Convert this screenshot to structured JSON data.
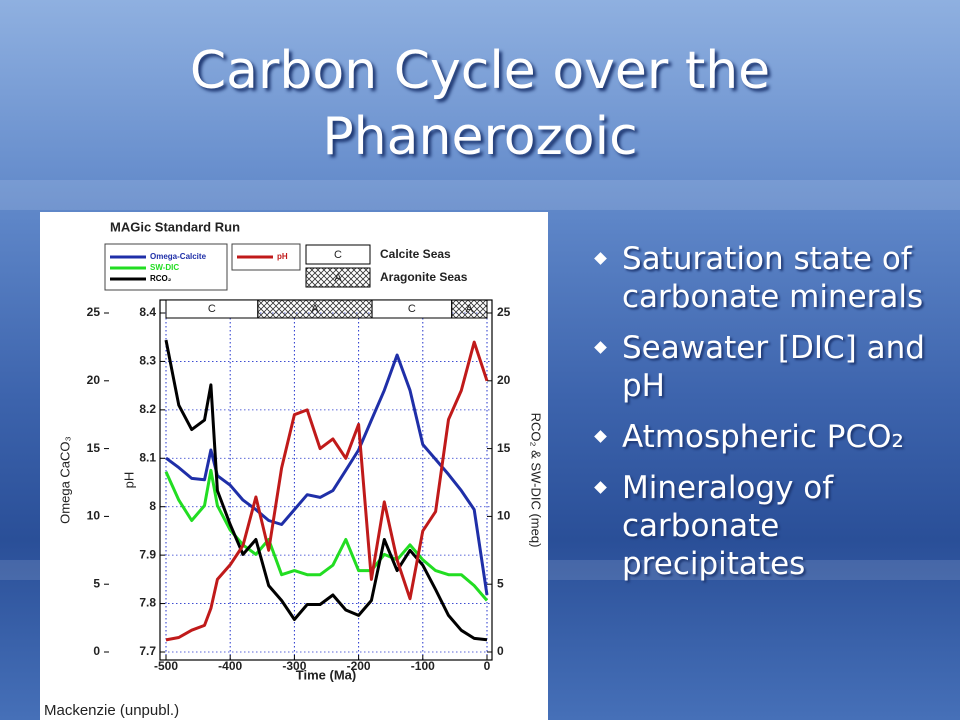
{
  "slide": {
    "title": "Carbon Cycle over the Phanerozoic",
    "bullets": [
      "Saturation state of carbonate minerals",
      "Seawater [DIC] and pH",
      "Atmospheric PCO₂",
      "Mineralogy of carbonate precipitates"
    ],
    "credit": "Mackenzie (unpubl.)"
  },
  "chart_data": {
    "type": "line",
    "title": "MAGic Standard Run",
    "x_label": "Time (Ma)",
    "y_label": "Omega CaCO₃",
    "y2_label": "RCO₂ & SW-DIC (meq)",
    "y3_label": "pH",
    "x": [
      -500,
      -480,
      -460,
      -440,
      -430,
      -420,
      -400,
      -380,
      -360,
      -340,
      -320,
      -300,
      -280,
      -260,
      -240,
      -220,
      -200,
      -180,
      -160,
      -140,
      -120,
      -100,
      -80,
      -60,
      -40,
      -20,
      0
    ],
    "xlim": [
      -500,
      0
    ],
    "xticks": [
      -500,
      -400,
      -300,
      -200,
      -100,
      0
    ],
    "ylim": [
      0,
      25
    ],
    "yticks": [
      0,
      5,
      10,
      15,
      20,
      25
    ],
    "y2lim": [
      0,
      25
    ],
    "y2ticks": [
      0,
      5,
      10,
      15,
      20,
      25
    ],
    "y3lim": [
      7.7,
      8.4
    ],
    "y3ticks": [
      7.7,
      7.8,
      7.9,
      8,
      8.1,
      8.2,
      8.3,
      8.4
    ],
    "grid": true,
    "series": [
      {
        "name": "Omega-Calcite",
        "color": "#1f2fa8",
        "axis": "y",
        "values": [
          14.3,
          13.6,
          12.8,
          12.7,
          14.9,
          13,
          12.3,
          11.2,
          10.5,
          9.7,
          9.4,
          10.5,
          11.6,
          11.4,
          11.9,
          13.4,
          14.9,
          17.1,
          19.3,
          21.9,
          19.3,
          15.3,
          14.2,
          13.1,
          11.9,
          10.5,
          4.2
        ]
      },
      {
        "name": "SW-DIC",
        "color": "#22dd22",
        "axis": "y2",
        "values": [
          13.3,
          11.2,
          9.7,
          10.8,
          13.4,
          10.8,
          9,
          7.9,
          7.2,
          8.3,
          5.7,
          6,
          5.7,
          5.7,
          6.4,
          8.3,
          6,
          6,
          7.2,
          6.8,
          7.9,
          6.8,
          6,
          5.7,
          5.7,
          4.9,
          3.8
        ]
      },
      {
        "name": "RCO₂",
        "color": "#000000",
        "axis": "y2",
        "values": [
          23,
          18.2,
          16.4,
          17.1,
          19.7,
          11.9,
          9.4,
          7.2,
          8.3,
          4.9,
          3.8,
          2.4,
          3.5,
          3.5,
          4.2,
          3.1,
          2.7,
          3.8,
          8.3,
          6,
          7.5,
          6.4,
          4.6,
          2.7,
          1.6,
          1,
          0.9
        ]
      },
      {
        "name": "pH",
        "color": "#c01a1a",
        "axis": "y3",
        "values": [
          7.725,
          7.73,
          7.745,
          7.755,
          7.79,
          7.85,
          7.88,
          7.92,
          8.02,
          7.91,
          8.08,
          8.19,
          8.2,
          8.12,
          8.14,
          8.1,
          8.17,
          7.85,
          8.01,
          7.89,
          7.81,
          7.95,
          7.99,
          8.18,
          8.24,
          8.34,
          8.26
        ]
      }
    ],
    "seas": [
      {
        "label": "C",
        "start": -500,
        "end": -357,
        "hatched": false
      },
      {
        "label": "A",
        "start": -357,
        "end": -179,
        "hatched": true
      },
      {
        "label": "C",
        "start": -179,
        "end": -55,
        "hatched": false
      },
      {
        "label": "A",
        "start": -55,
        "end": 0,
        "hatched": true
      }
    ],
    "seas_legend": [
      {
        "label": "C",
        "name": "Calcite Seas",
        "hatched": false
      },
      {
        "label": "A",
        "name": "Aragonite Seas",
        "hatched": true
      }
    ]
  }
}
